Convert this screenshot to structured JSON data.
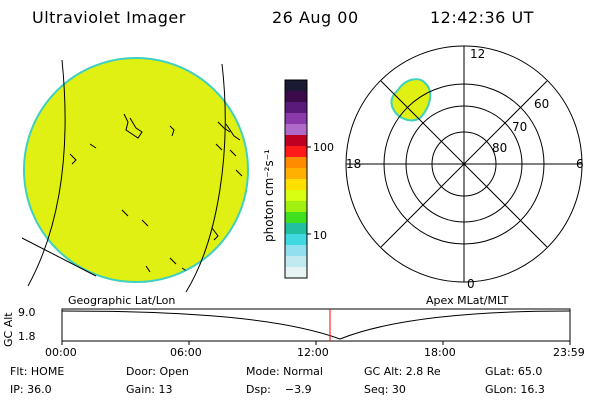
{
  "header": {
    "instrument": "Ultraviolet Imager",
    "date": "26 Aug 00",
    "time": "12:42:36 UT"
  },
  "colorbar": {
    "unit": "photon cm⁻²s⁻¹",
    "ticks": [
      "100",
      "10"
    ],
    "colors": [
      "#1a1a33",
      "#3a0a4a",
      "#5a1a7a",
      "#8a3aaa",
      "#b06ac8",
      "#c00020",
      "#ff1a1a",
      "#ff8c00",
      "#ffb000",
      "#ffe000",
      "#d8ff10",
      "#a0f010",
      "#40e020",
      "#20c0a0",
      "#40d8e0",
      "#90e0f0",
      "#c0eaf0",
      "#e8f4f4"
    ]
  },
  "polar": {
    "labels": {
      "top": "12",
      "left": "18",
      "right": "6",
      "bottom": "0"
    },
    "rings": [
      "60",
      "70",
      "80"
    ]
  },
  "left_panel": {
    "caption": "Geographic Lat/Lon"
  },
  "right_panel": {
    "caption": "Apex MLat/MLT"
  },
  "timeline": {
    "ylabel": "GC Alt",
    "y_top": "9.0",
    "y_bottom": "1.8",
    "x_ticks": [
      "00:00",
      "06:00",
      "12:00",
      "18:00",
      "23:59"
    ],
    "marker_color": "#ff0000"
  },
  "meta": {
    "row1": [
      "Flt: HOME",
      "Door: Open",
      "Mode: Normal",
      "GC Alt: 2.8 Re",
      "GLat: 65.0"
    ],
    "row2": [
      "IP: 36.0",
      "Gain: 13",
      "Dsp:    −3.9",
      "Seq: 30",
      "GLon: 16.3"
    ]
  }
}
